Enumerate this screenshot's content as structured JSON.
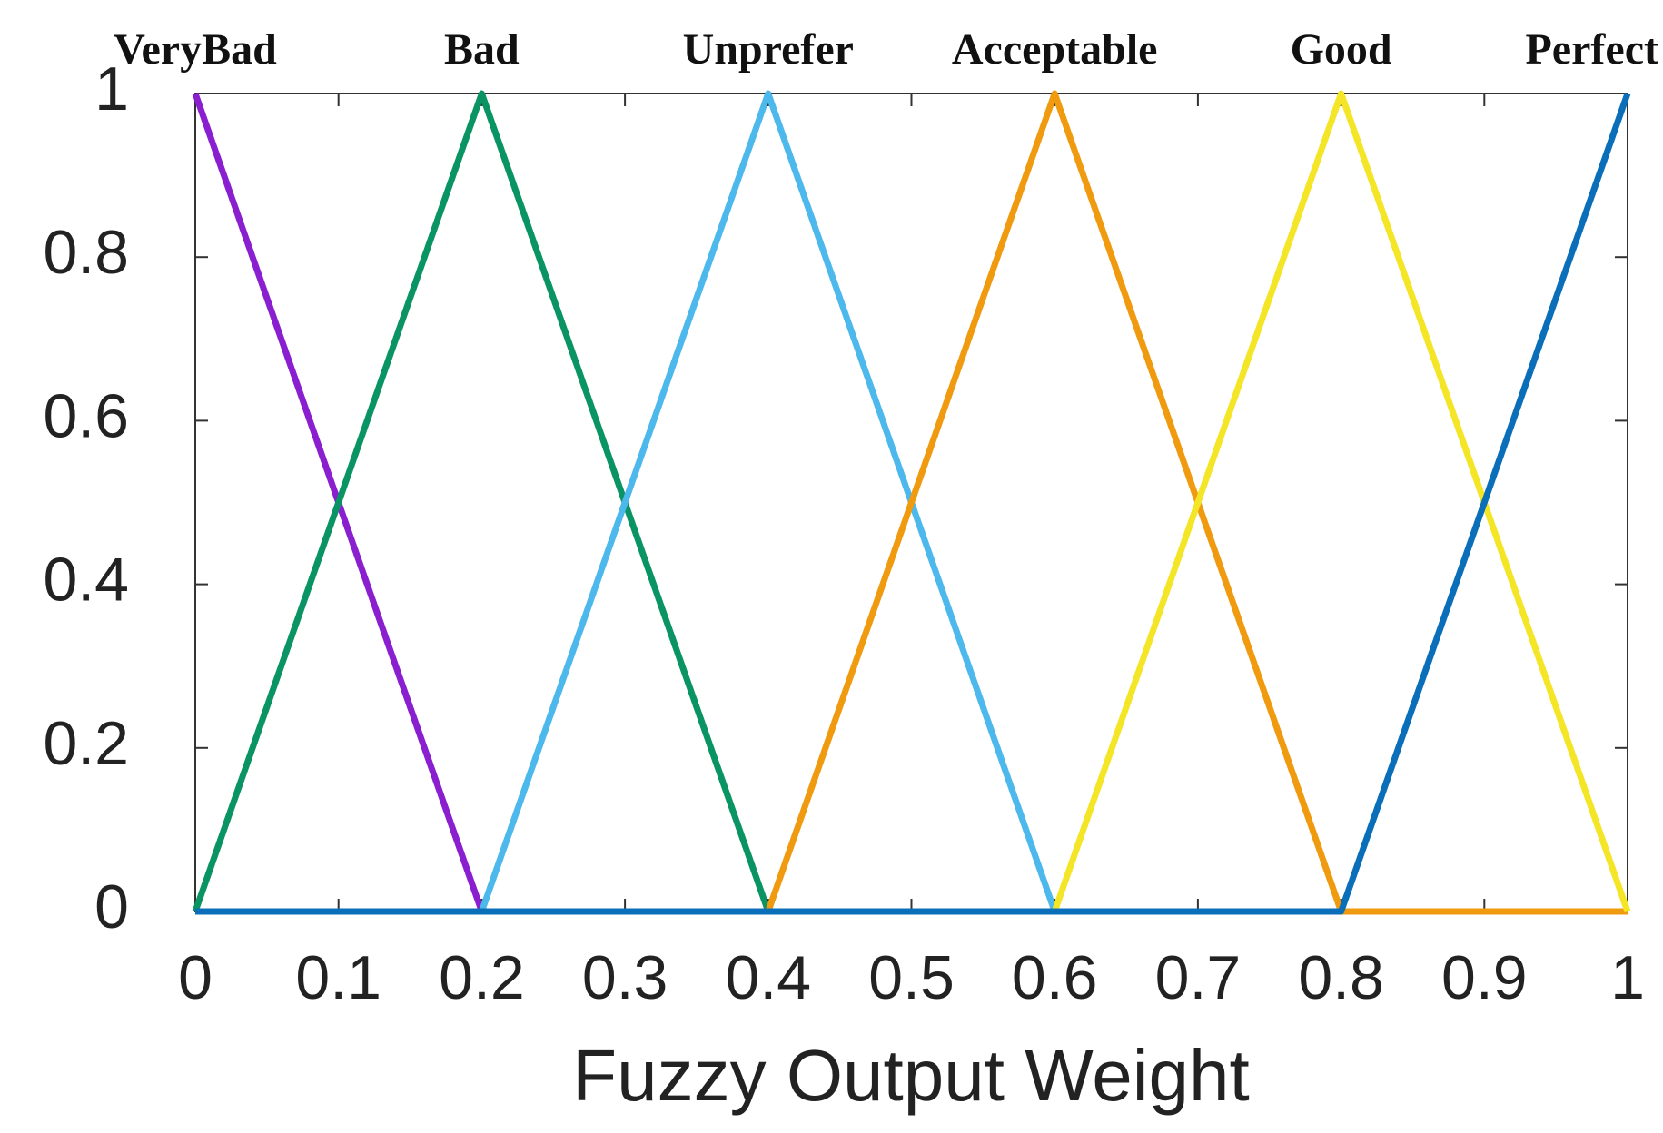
{
  "chart_data": {
    "type": "line",
    "x": [
      0,
      0.2,
      0.4,
      0.6,
      0.8,
      1
    ],
    "series": [
      {
        "name": "VeryBad",
        "color": "#8a1fd0",
        "values": [
          1,
          0,
          0,
          0,
          0,
          0
        ]
      },
      {
        "name": "Bad",
        "color": "#0a9463",
        "values": [
          0,
          1,
          0,
          0,
          0,
          0
        ]
      },
      {
        "name": "Unprefer",
        "color": "#4db8ec",
        "values": [
          0,
          0,
          1,
          0,
          0,
          0
        ]
      },
      {
        "name": "Acceptable",
        "color": "#f09a10",
        "values": [
          0,
          0,
          0,
          1,
          0,
          0
        ]
      },
      {
        "name": "Good",
        "color": "#f4e526",
        "values": [
          0,
          0,
          0,
          0,
          1,
          0
        ]
      },
      {
        "name": "Perfect",
        "color": "#0a6fb8",
        "values": [
          0,
          0,
          0,
          0,
          0,
          1
        ]
      }
    ],
    "x_label": "Fuzzy Output Weight",
    "xlim": [
      0,
      1
    ],
    "xticks": [
      0,
      0.1,
      0.2,
      0.3,
      0.4,
      0.5,
      0.6,
      0.7,
      0.8,
      0.9,
      1
    ],
    "ylim": [
      0,
      1
    ],
    "yticks": [
      0,
      0.2,
      0.4,
      0.6,
      0.8,
      1
    ],
    "grid": false
  }
}
